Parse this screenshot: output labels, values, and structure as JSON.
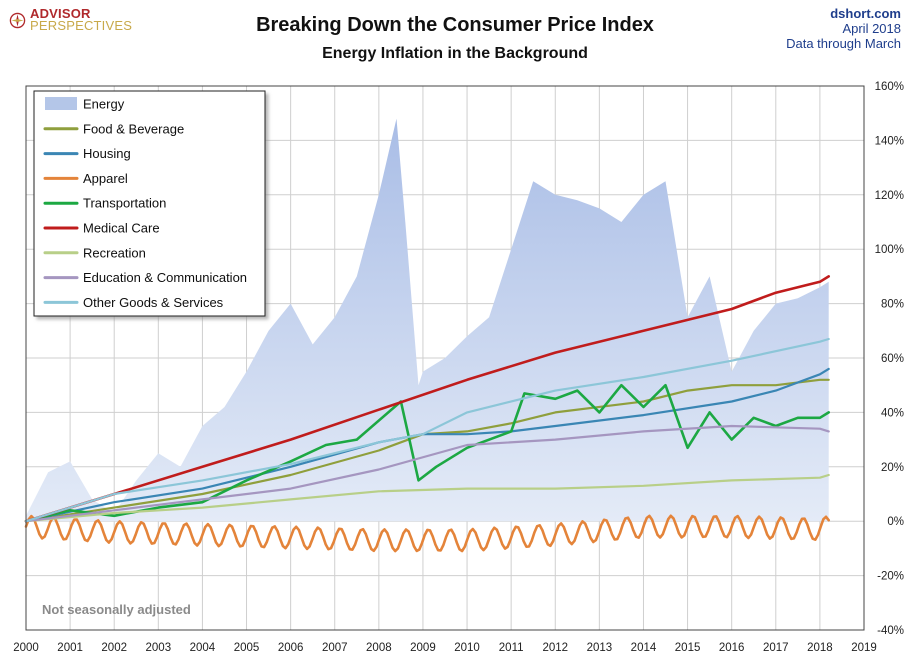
{
  "logo": {
    "line1": "ADVISOR",
    "line2": "PERSPECTIVES"
  },
  "source": "dshort.com",
  "date_line1": "April 2018",
  "date_line2": "Data through March",
  "chart_data": {
    "type": "line",
    "title": "Breaking Down the Consumer Price Index",
    "subtitle": "Energy Inflation in the Background",
    "annotation": "Not seasonally adjusted",
    "xlabel": "",
    "ylabel": "",
    "xlim": [
      2000,
      2019
    ],
    "ylim": [
      -40,
      160
    ],
    "x_ticks": [
      "2000",
      "2001",
      "2002",
      "2003",
      "2004",
      "2005",
      "2006",
      "2007",
      "2008",
      "2009",
      "2010",
      "2011",
      "2012",
      "2013",
      "2014",
      "2015",
      "2016",
      "2017",
      "2018",
      "2019"
    ],
    "y_ticks": [
      "-40%",
      "-20%",
      "0%",
      "20%",
      "40%",
      "60%",
      "80%",
      "100%",
      "120%",
      "140%",
      "160%"
    ],
    "grid": true,
    "legend_position": "top-left",
    "colors": {
      "energy": "#b4c6e8",
      "food": "#8f9f3c",
      "housing": "#3a86b4",
      "apparel": "#e4843a",
      "transportation": "#1ca843",
      "medical": "#c01c1c",
      "recreation": "#b8cf88",
      "education": "#a596c0",
      "other": "#8cc6d8"
    },
    "series": [
      {
        "key": "energy",
        "name": "Energy",
        "style": "area",
        "x": [
          2000,
          2000.5,
          2001,
          2001.5,
          2002,
          2002.5,
          2003,
          2003.5,
          2004,
          2004.5,
          2005,
          2005.5,
          2006,
          2006.5,
          2007,
          2007.5,
          2008,
          2008.4,
          2008.6,
          2008.9,
          2009,
          2009.5,
          2010,
          2010.5,
          2011,
          2011.5,
          2012,
          2012.5,
          2013,
          2013.5,
          2014,
          2014.5,
          2015,
          2015.5,
          2016,
          2016.5,
          2017,
          2017.5,
          2018,
          2018.2
        ],
        "y": [
          2,
          18,
          22,
          8,
          3,
          15,
          25,
          20,
          35,
          42,
          55,
          70,
          80,
          65,
          75,
          90,
          120,
          148,
          110,
          50,
          55,
          60,
          68,
          75,
          100,
          125,
          120,
          118,
          115,
          110,
          120,
          125,
          75,
          90,
          55,
          70,
          80,
          82,
          86,
          88
        ]
      },
      {
        "key": "food",
        "name": "Food & Beverage",
        "x": [
          2000,
          2002,
          2004,
          2006,
          2008,
          2009,
          2010,
          2011,
          2012,
          2014,
          2015,
          2016,
          2017,
          2018,
          2018.2
        ],
        "y": [
          0,
          5,
          10,
          17,
          26,
          32,
          33,
          36,
          40,
          44,
          48,
          50,
          50,
          52,
          52
        ]
      },
      {
        "key": "housing",
        "name": "Housing",
        "x": [
          2000,
          2002,
          2004,
          2006,
          2008,
          2009,
          2010,
          2011,
          2012,
          2014,
          2016,
          2017,
          2018,
          2018.2
        ],
        "y": [
          0,
          7,
          12,
          20,
          29,
          32,
          32,
          33,
          35,
          39,
          44,
          48,
          54,
          56
        ]
      },
      {
        "key": "apparel",
        "name": "Apparel",
        "x": [
          2000,
          2002,
          2004,
          2006,
          2008,
          2010,
          2012,
          2014,
          2016,
          2018,
          2018.2
        ],
        "y": [
          -2,
          -4,
          -5,
          -6,
          -7,
          -7,
          -5,
          -2,
          -2,
          -3,
          -2
        ]
      },
      {
        "key": "transportation",
        "name": "Transportation",
        "x": [
          2000,
          2001,
          2002,
          2003,
          2004,
          2005,
          2006,
          2006.8,
          2007.5,
          2008.5,
          2008.9,
          2009.3,
          2010,
          2011,
          2011.3,
          2012,
          2012.5,
          2013,
          2013.5,
          2014,
          2014.5,
          2015,
          2015.5,
          2016,
          2016.5,
          2017,
          2017.5,
          2018,
          2018.2
        ],
        "y": [
          0,
          4,
          2,
          5,
          7,
          15,
          22,
          28,
          30,
          44,
          15,
          20,
          27,
          33,
          47,
          45,
          48,
          40,
          50,
          42,
          50,
          27,
          40,
          30,
          38,
          35,
          38,
          38,
          40
        ]
      },
      {
        "key": "medical",
        "name": "Medical Care",
        "x": [
          2000,
          2002,
          2004,
          2006,
          2008,
          2010,
          2012,
          2014,
          2016,
          2017,
          2018,
          2018.2
        ],
        "y": [
          0,
          10,
          20,
          30,
          41,
          52,
          62,
          70,
          78,
          84,
          88,
          90
        ]
      },
      {
        "key": "recreation",
        "name": "Recreation",
        "x": [
          2000,
          2002,
          2004,
          2006,
          2008,
          2010,
          2012,
          2014,
          2016,
          2018,
          2018.2
        ],
        "y": [
          0,
          3,
          5,
          8,
          11,
          12,
          12,
          13,
          15,
          16,
          17
        ]
      },
      {
        "key": "education",
        "name": "Education & Communication",
        "x": [
          2000,
          2002,
          2004,
          2006,
          2008,
          2010,
          2012,
          2014,
          2016,
          2018,
          2018.2
        ],
        "y": [
          0,
          4,
          8,
          12,
          19,
          28,
          30,
          33,
          35,
          34,
          33
        ]
      },
      {
        "key": "other",
        "name": "Other Goods & Services",
        "x": [
          2000,
          2002,
          2004,
          2006,
          2008,
          2009,
          2010,
          2012,
          2014,
          2016,
          2018,
          2018.2
        ],
        "y": [
          0,
          10,
          15,
          21,
          29,
          32,
          40,
          48,
          53,
          59,
          66,
          67
        ]
      }
    ]
  }
}
